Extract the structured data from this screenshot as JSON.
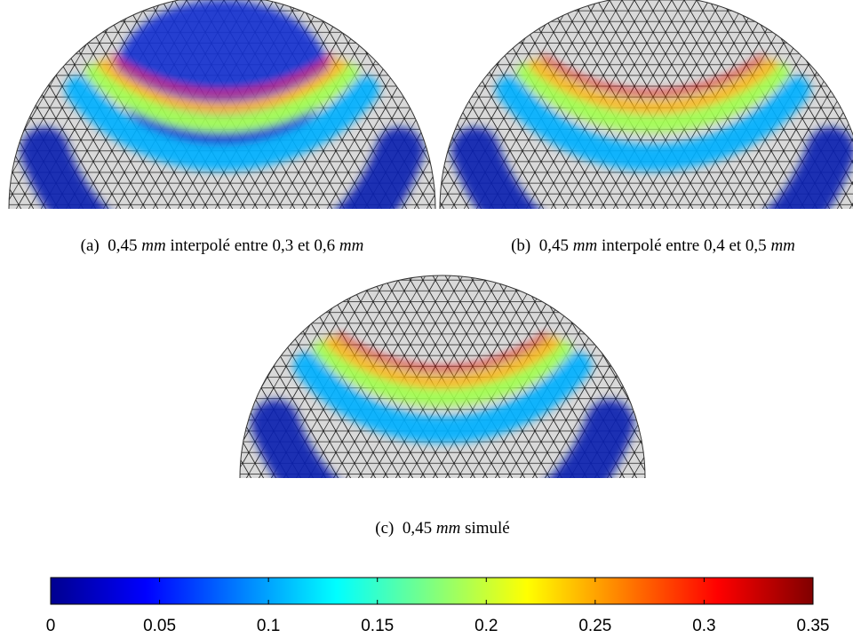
{
  "figures": [
    {
      "label": "(a)",
      "caption": [
        {
          "text": "0,45 "
        },
        {
          "text": "mm",
          "italic": true
        },
        {
          "text": " interpolé entre 0,3 et 0,6 "
        },
        {
          "text": "mm",
          "italic": true
        }
      ]
    },
    {
      "label": "(b)",
      "caption": [
        {
          "text": "0,45 "
        },
        {
          "text": "mm",
          "italic": true
        },
        {
          "text": " interpolé entre 0,4 et 0,5 "
        },
        {
          "text": "mm",
          "italic": true
        }
      ]
    },
    {
      "label": "(c)",
      "caption": [
        {
          "text": "0,45 "
        },
        {
          "text": "mm",
          "italic": true
        },
        {
          "text": " simulé"
        }
      ]
    }
  ],
  "colorbar": {
    "colormap": "jet",
    "lim": [
      0,
      0.35
    ],
    "ticks": [
      0,
      0.05,
      0.1,
      0.15,
      0.2,
      0.25,
      0.3,
      0.35
    ]
  }
}
